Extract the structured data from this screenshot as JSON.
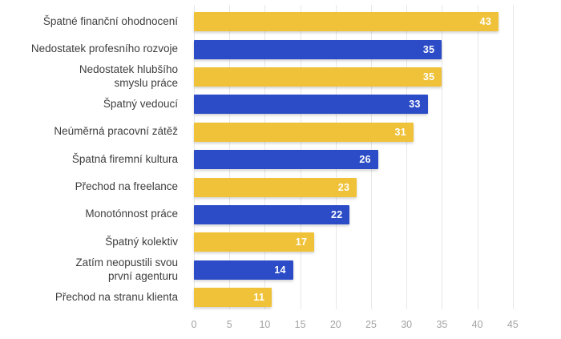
{
  "chart_data": {
    "type": "bar",
    "orientation": "horizontal",
    "title": "",
    "xlabel": "",
    "ylabel": "",
    "categories": [
      "Špatné finanční ohodnocení",
      "Nedostatek profesního rozvoje",
      "Nedostatek hlubšího\nsmyslu práce",
      "Špatný vedoucí",
      "Neúměrná pracovní zátěž",
      "Špatná firemní kultura",
      "Přechod na freelance",
      "Monotónnost práce",
      "Špatný kolektiv",
      "Zatím neopustili svou\nprvní agenturu",
      "Přechod na stranu klienta"
    ],
    "values": [
      43,
      35,
      35,
      33,
      31,
      26,
      23,
      22,
      17,
      14,
      11
    ],
    "value_labels": [
      "43",
      "35",
      "35",
      "33",
      "31",
      "26",
      "23",
      "22",
      "17",
      "14",
      "11"
    ],
    "bar_color_pattern": [
      "#F0C239",
      "#2B4BC7"
    ],
    "value_label_color": "#FFFFFF",
    "category_label_color": "#3E3E3E",
    "axis_tick_color": "#A3A3A3",
    "gridline_color": "#E7E7E7",
    "x_ticks": [
      0,
      5,
      10,
      15,
      20,
      25,
      30,
      35,
      40,
      45
    ],
    "xlim": [
      0,
      45
    ],
    "grid": "vertical-only",
    "legend": "none",
    "value_labels_inside_bars": true
  }
}
